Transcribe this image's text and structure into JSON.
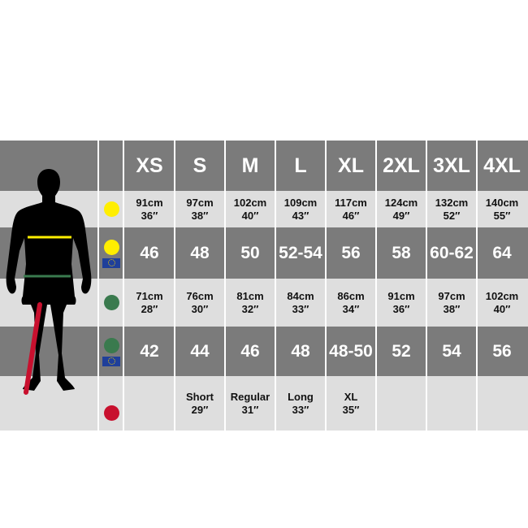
{
  "colors": {
    "dark_band": "#7b7b7b",
    "light_band": "#dedede",
    "chest": "#ffee00",
    "waist": "#3a7a4e",
    "inseam": "#c8102e",
    "eu_flag": "#1f3f9a"
  },
  "sizes": [
    "XS",
    "S",
    "M",
    "L",
    "XL",
    "2XL",
    "3XL",
    "4XL"
  ],
  "rows": [
    {
      "indicator": "chest",
      "flag": false,
      "values": [
        [
          "91cm",
          "36″"
        ],
        [
          "97cm",
          "38″"
        ],
        [
          "102cm",
          "40″"
        ],
        [
          "109cm",
          "43″"
        ],
        [
          "117cm",
          "46″"
        ],
        [
          "124cm",
          "49″"
        ],
        [
          "132cm",
          "52″"
        ],
        [
          "140cm",
          "55″"
        ]
      ]
    },
    {
      "indicator": "chest",
      "flag": true,
      "values": [
        "46",
        "48",
        "50",
        "52-54",
        "56",
        "58",
        "60-62",
        "64"
      ]
    },
    {
      "indicator": "waist",
      "flag": false,
      "values": [
        [
          "71cm",
          "28″"
        ],
        [
          "76cm",
          "30″"
        ],
        [
          "81cm",
          "32″"
        ],
        [
          "84cm",
          "33″"
        ],
        [
          "86cm",
          "34″"
        ],
        [
          "91cm",
          "36″"
        ],
        [
          "97cm",
          "38″"
        ],
        [
          "102cm",
          "40″"
        ]
      ]
    },
    {
      "indicator": "waist",
      "flag": true,
      "values": [
        "42",
        "44",
        "46",
        "48",
        "48-50",
        "52",
        "54",
        "56"
      ]
    },
    {
      "indicator": "inseam",
      "flag": false,
      "values": [
        [
          "",
          ""
        ],
        [
          "Short",
          "29″"
        ],
        [
          "Regular",
          "31″"
        ],
        [
          "Long",
          "33″"
        ],
        [
          "XL",
          "35″"
        ],
        [
          "",
          ""
        ],
        [
          "",
          ""
        ],
        [
          "",
          ""
        ]
      ]
    }
  ]
}
